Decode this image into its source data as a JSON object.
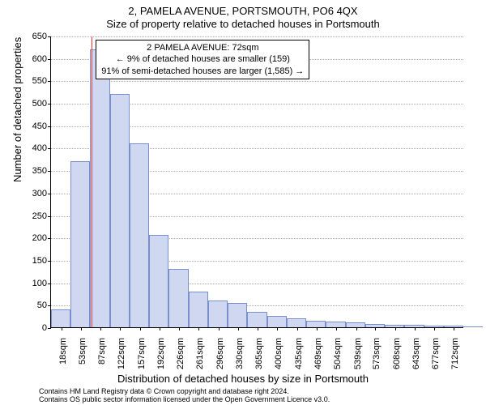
{
  "title_line1": "2, PAMELA AVENUE, PORTSMOUTH, PO6 4QX",
  "title_line2": "Size of property relative to detached houses in Portsmouth",
  "ylabel": "Number of detached properties",
  "xlabel": "Distribution of detached houses by size in Portsmouth",
  "footnote_line1": "Contains HM Land Registry data © Crown copyright and database right 2024.",
  "footnote_line2": "Contains OS public sector information licensed under the Open Government Licence v3.0.",
  "callout": {
    "line1": "2 PAMELA AVENUE: 72sqm",
    "line2": "← 9% of detached houses are smaller (159)",
    "line3": "91% of semi-detached houses are larger (1,585) →"
  },
  "chart": {
    "type": "histogram",
    "ylim": [
      0,
      650
    ],
    "ytick_step": 50,
    "bar_fill": "#cfd8f0",
    "bar_stroke": "#7a8fd0",
    "grid_color": "#aaaaaa",
    "ref_line_color": "#ee3333",
    "ref_line_value": 72,
    "background_color": "#ffffff",
    "title_fontsize": 13,
    "label_fontsize": 13,
    "tick_fontsize": 11,
    "x_tick_positions": [
      18,
      53,
      87,
      122,
      157,
      192,
      226,
      261,
      296,
      330,
      365,
      400,
      435,
      469,
      504,
      539,
      573,
      608,
      643,
      677,
      712
    ],
    "x_tick_labels": [
      "18sqm",
      "53sqm",
      "87sqm",
      "122sqm",
      "157sqm",
      "192sqm",
      "226sqm",
      "261sqm",
      "296sqm",
      "330sqm",
      "365sqm",
      "400sqm",
      "435sqm",
      "469sqm",
      "504sqm",
      "539sqm",
      "573sqm",
      "608sqm",
      "643sqm",
      "677sqm",
      "712sqm"
    ],
    "x_range": [
      0,
      730
    ],
    "bin_width": 34.7,
    "values": [
      40,
      370,
      620,
      520,
      410,
      205,
      130,
      80,
      60,
      55,
      35,
      25,
      20,
      15,
      12,
      10,
      8,
      6,
      5,
      4,
      3,
      2
    ]
  }
}
